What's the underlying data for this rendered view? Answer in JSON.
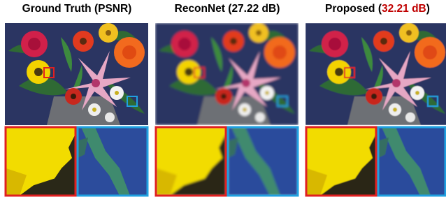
{
  "panels": [
    {
      "title_parts": [
        {
          "text": "Ground Truth (PSNR)",
          "color": "#000000"
        }
      ]
    },
    {
      "title_parts": [
        {
          "text": "ReconNet (27.22 dB)",
          "color": "#000000"
        }
      ]
    },
    {
      "title_parts": [
        {
          "text": "Proposed (",
          "color": "#000000"
        },
        {
          "text": "32.21 dB",
          "color": "#c00000"
        },
        {
          "text": ")",
          "color": "#000000"
        }
      ]
    }
  ]
}
